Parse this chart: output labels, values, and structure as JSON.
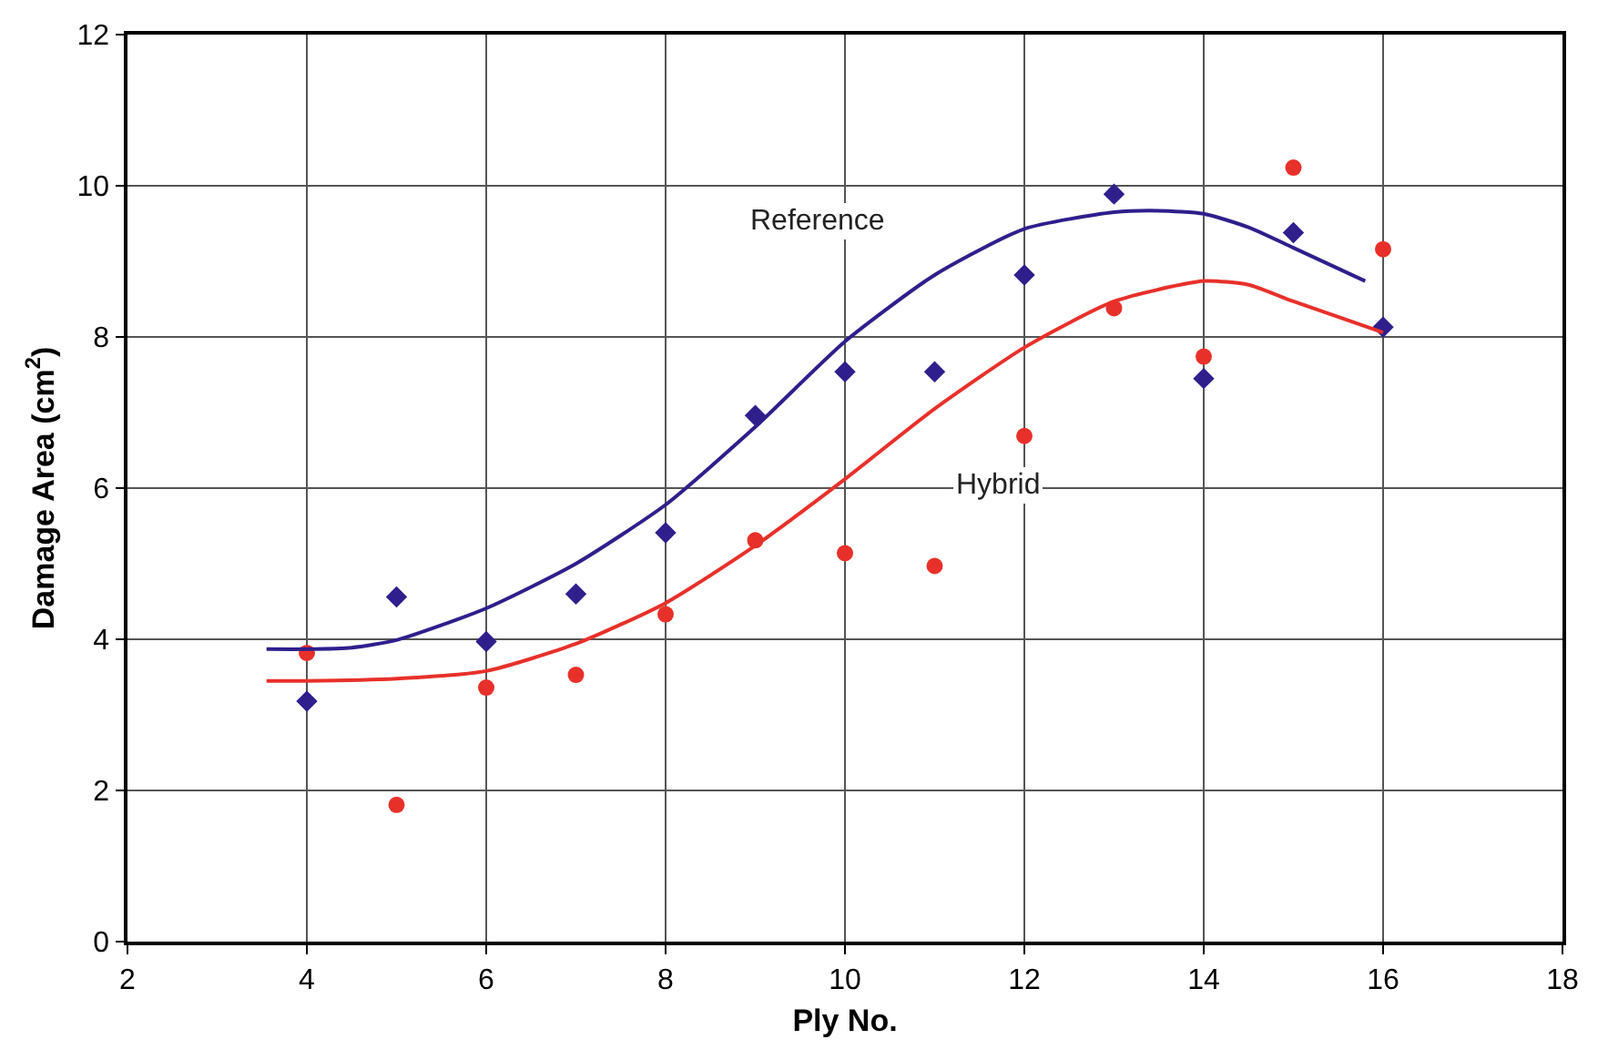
{
  "chart_data": {
    "type": "scatter",
    "xlabel": "Ply No.",
    "ylabel": "Damage Area (cm$^{2}$)",
    "xlim": [
      2,
      18
    ],
    "xticks": [
      2,
      4,
      6,
      8,
      10,
      12,
      14,
      16,
      18
    ],
    "ylim": [
      0,
      12
    ],
    "yticks": [
      0,
      2,
      4,
      6,
      8,
      10,
      12
    ],
    "grid": true,
    "series": [
      {
        "marker": "diamond",
        "color": "#2e1f8c",
        "x": [
          4,
          5,
          6,
          7,
          8,
          9,
          10,
          11,
          12,
          13,
          14,
          15,
          16
        ],
        "values": [
          3.18,
          4.56,
          3.97,
          4.6,
          5.41,
          6.96,
          7.54,
          7.54,
          8.82,
          9.89,
          7.45,
          9.38,
          8.13
        ]
      },
      {
        "marker": "circle",
        "color": "#e8302a",
        "x": [
          4,
          5,
          6,
          7,
          8,
          9,
          10,
          11,
          12,
          13,
          14,
          15,
          16
        ],
        "values": [
          3.82,
          1.81,
          3.36,
          3.53,
          4.33,
          5.31,
          5.14,
          4.97,
          6.69,
          8.38,
          7.74,
          10.24,
          9.16
        ]
      },
      {
        "type": "line",
        "name": "Reference",
        "color": "#2e1f8c",
        "x": [
          3.55,
          4,
          4.5,
          5,
          6,
          7,
          8,
          9,
          10,
          11,
          12,
          13,
          13.5,
          14,
          14.5,
          15,
          15.8
        ],
        "values": [
          3.87,
          3.87,
          3.89,
          3.99,
          4.41,
          5.0,
          5.78,
          6.81,
          7.94,
          8.82,
          9.43,
          9.65,
          9.67,
          9.63,
          9.45,
          9.18,
          8.74
        ]
      },
      {
        "type": "line",
        "name": "Hybrid",
        "color": "#e8302a",
        "x": [
          3.55,
          4,
          5,
          6,
          7,
          8,
          9,
          10,
          11,
          12,
          13,
          14,
          14.5,
          15,
          16
        ],
        "values": [
          3.45,
          3.45,
          3.48,
          3.58,
          3.94,
          4.48,
          5.24,
          6.12,
          7.05,
          7.86,
          8.47,
          8.74,
          8.69,
          8.47,
          8.06
        ]
      }
    ]
  }
}
